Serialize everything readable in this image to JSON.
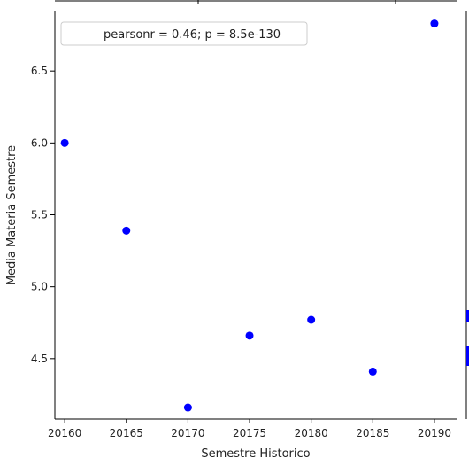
{
  "chart_data": {
    "type": "scatter",
    "title": "",
    "xlabel": "Semestre Historico",
    "ylabel": "Media Materia Semestre",
    "xlim": [
      20159.2,
      20191.8
    ],
    "ylim": [
      4.08,
      6.92
    ],
    "x_ticks": [
      20160,
      20165,
      20170,
      20175,
      20180,
      20185,
      20190
    ],
    "y_ticks": [
      4.5,
      5.0,
      5.5,
      6.0,
      6.5
    ],
    "x_tick_labels": [
      "20160",
      "20165",
      "20170",
      "20175",
      "20180",
      "20185",
      "20190"
    ],
    "y_tick_labels": [
      "4.5",
      "5.0",
      "5.5",
      "6.0",
      "6.5"
    ],
    "grid": false,
    "legend": {
      "position": "top-left",
      "text": "pearsonr = 0.46; p = 8.5e-130"
    },
    "series": [
      {
        "color": "#0000ff",
        "points": [
          {
            "x": 20160,
            "y": 6.0
          },
          {
            "x": 20165,
            "y": 5.39
          },
          {
            "x": 20170,
            "y": 4.16
          },
          {
            "x": 20175,
            "y": 4.66
          },
          {
            "x": 20180,
            "y": 4.77
          },
          {
            "x": 20185,
            "y": 4.41
          },
          {
            "x": 20190,
            "y": 6.83
          }
        ]
      }
    ]
  }
}
